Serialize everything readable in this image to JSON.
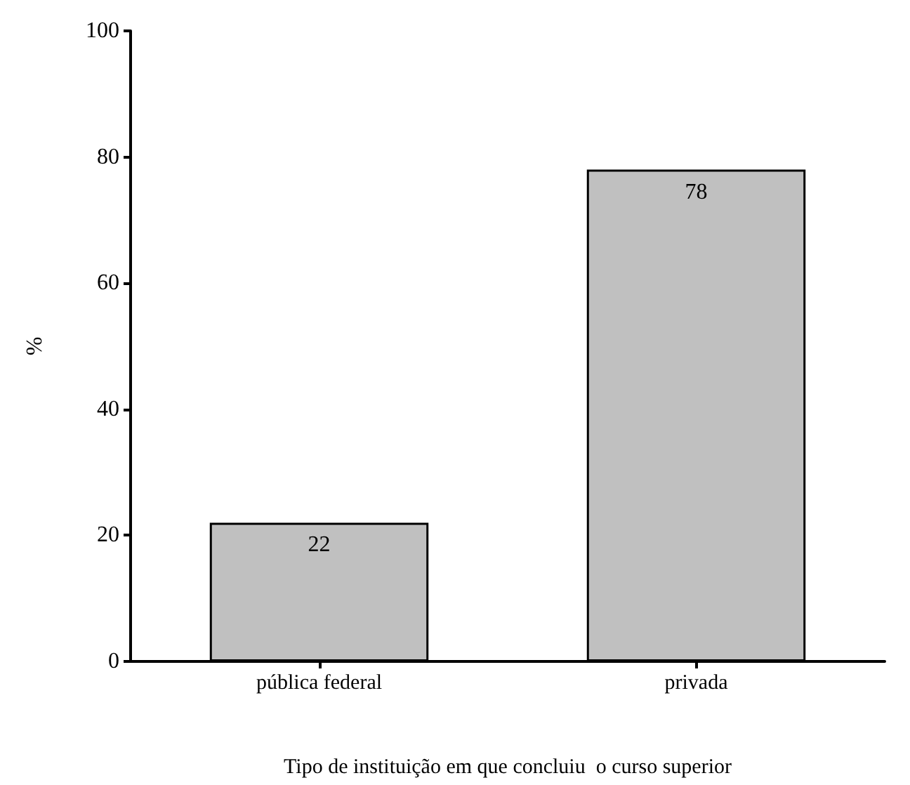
{
  "chart_data": {
    "type": "bar",
    "xlabel": "Tipo de instituição em que concluiu  o curso superior",
    "ylabel": "%",
    "categories": [
      "pública federal",
      "privada"
    ],
    "values": [
      22,
      78
    ],
    "color": "#c0c0c0",
    "ylim": [
      0,
      100
    ],
    "yticks": [
      0,
      20,
      40,
      60,
      80,
      100
    ],
    "grid": false,
    "data_labels": true
  }
}
